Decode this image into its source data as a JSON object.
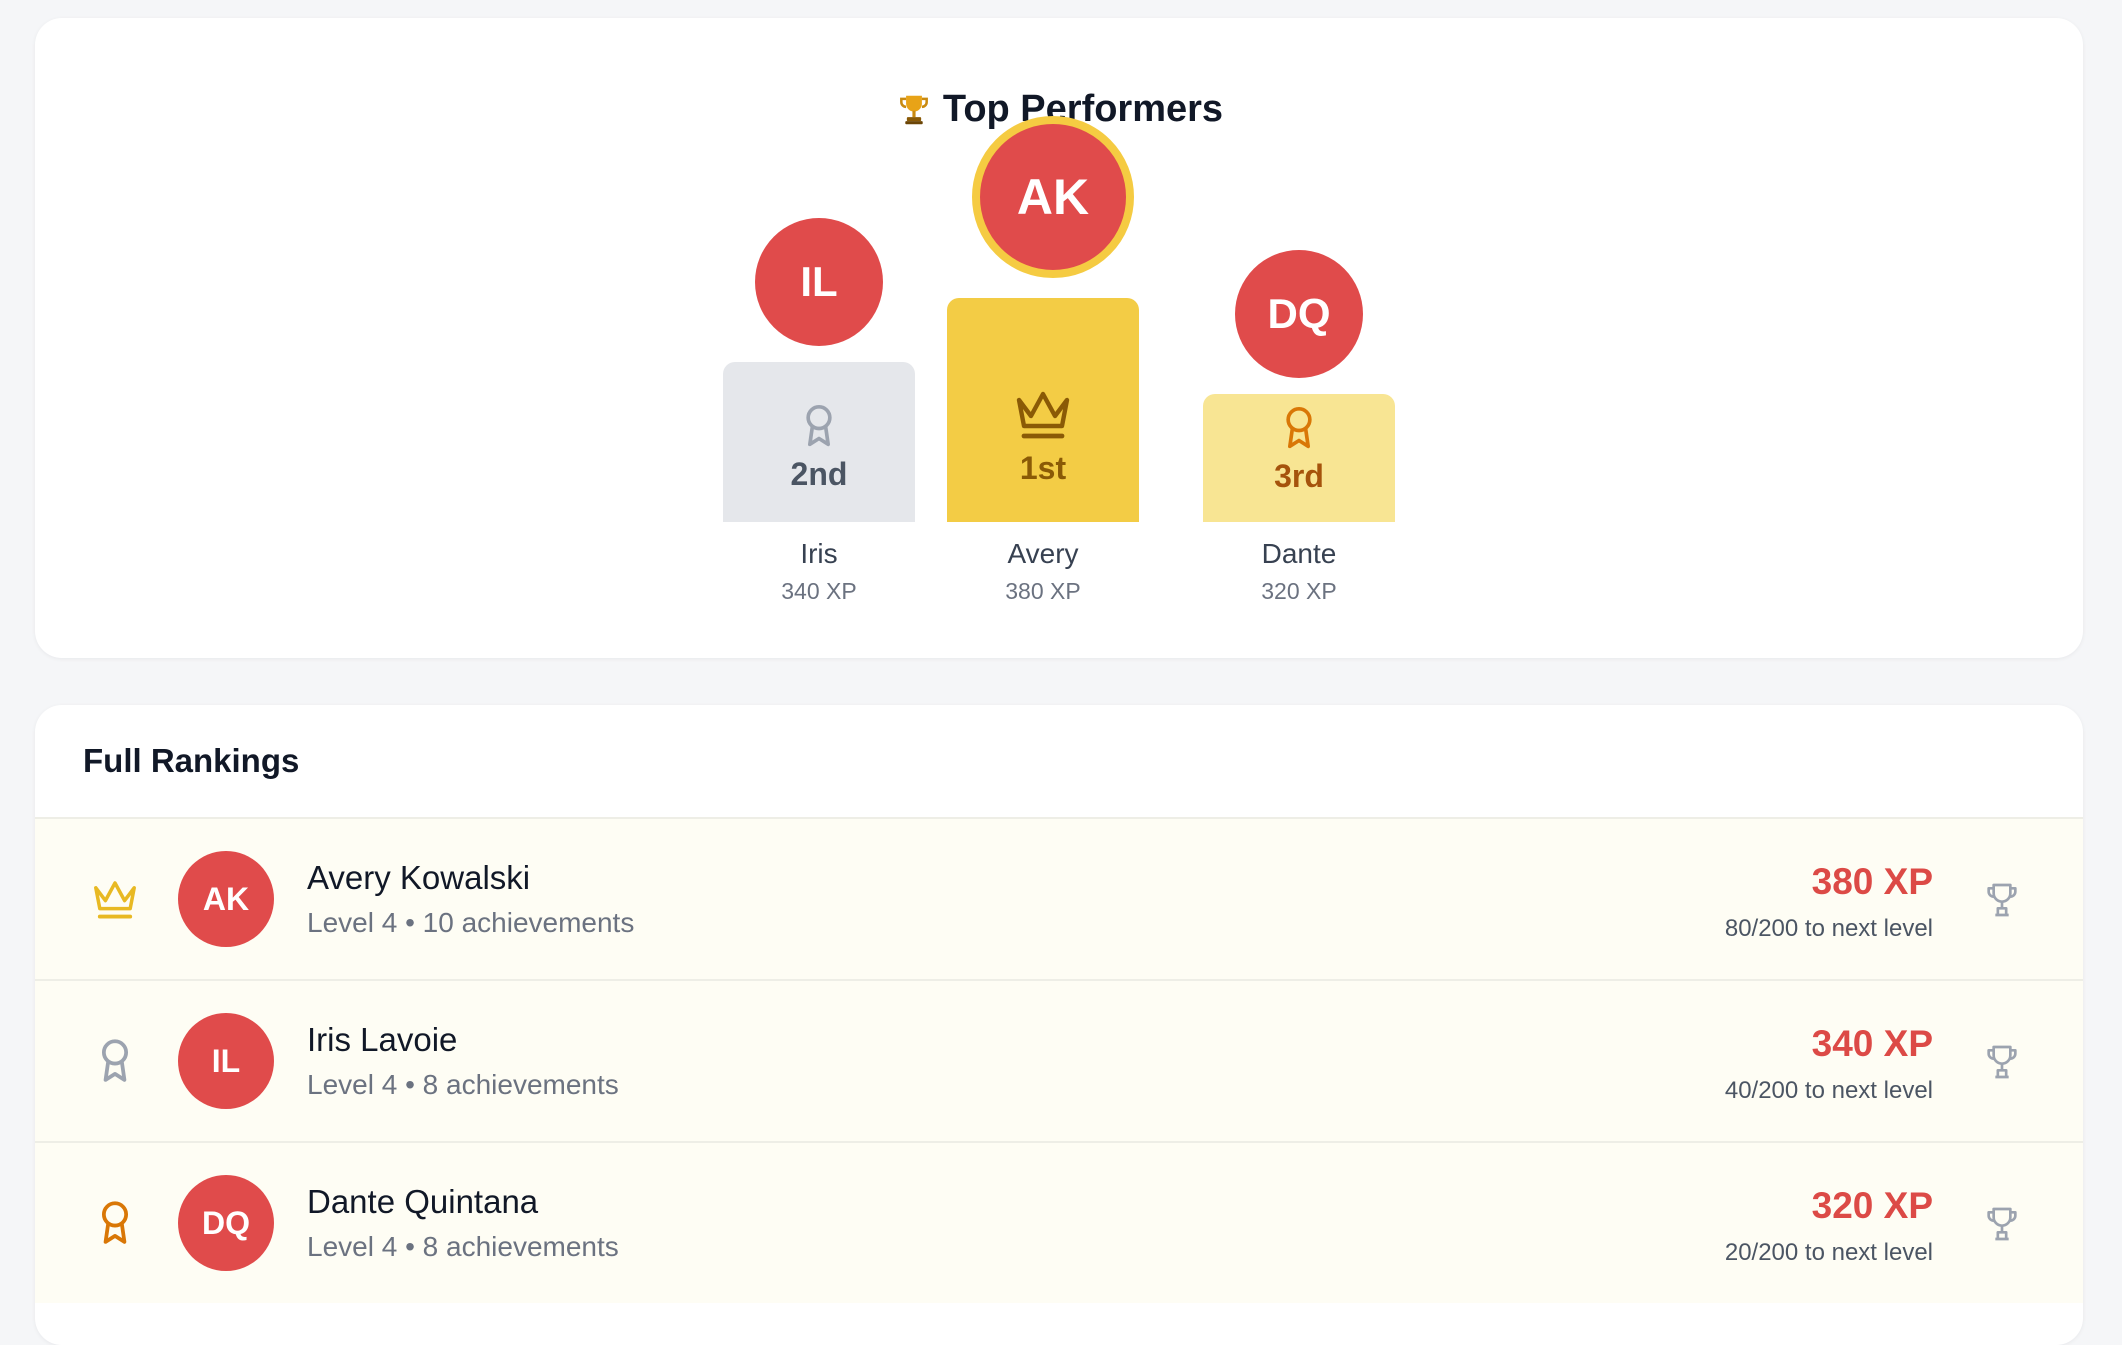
{
  "podium": {
    "title": "Top Performers",
    "title_icon": "trophy-icon",
    "places": [
      {
        "initials": "IL",
        "rank_label": "2nd",
        "name": "Iris",
        "xp": "340 XP",
        "icon": "ribbon-icon",
        "color": "#9ca3af"
      },
      {
        "initials": "AK",
        "rank_label": "1st",
        "name": "Avery",
        "xp": "380 XP",
        "icon": "crown-icon",
        "color": "#8a5a06"
      },
      {
        "initials": "DQ",
        "rank_label": "3rd",
        "name": "Dante",
        "xp": "320 XP",
        "icon": "ribbon-icon",
        "color": "#d97706"
      }
    ]
  },
  "rankings": {
    "title": "Full Rankings",
    "rows": [
      {
        "rank_icon": "crown-icon",
        "initials": "AK",
        "name": "Avery Kowalski",
        "sub": "Level 4 • 10 achievements",
        "xp": "380 XP",
        "next": "80/200 to next level"
      },
      {
        "rank_icon": "ribbon-icon",
        "initials": "IL",
        "name": "Iris Lavoie",
        "sub": "Level 4 • 8 achievements",
        "xp": "340 XP",
        "next": "40/200 to next level"
      },
      {
        "rank_icon": "ribbon-icon",
        "initials": "DQ",
        "name": "Dante Quintana",
        "sub": "Level 4 • 8 achievements",
        "xp": "320 XP",
        "next": "20/200 to next level"
      }
    ]
  },
  "colors": {
    "accent_red": "#e04b4b",
    "gold": "#f3cc45",
    "silver": "#e5e7eb",
    "bronze": "#f8e593",
    "row_background": "#fefdf4"
  }
}
